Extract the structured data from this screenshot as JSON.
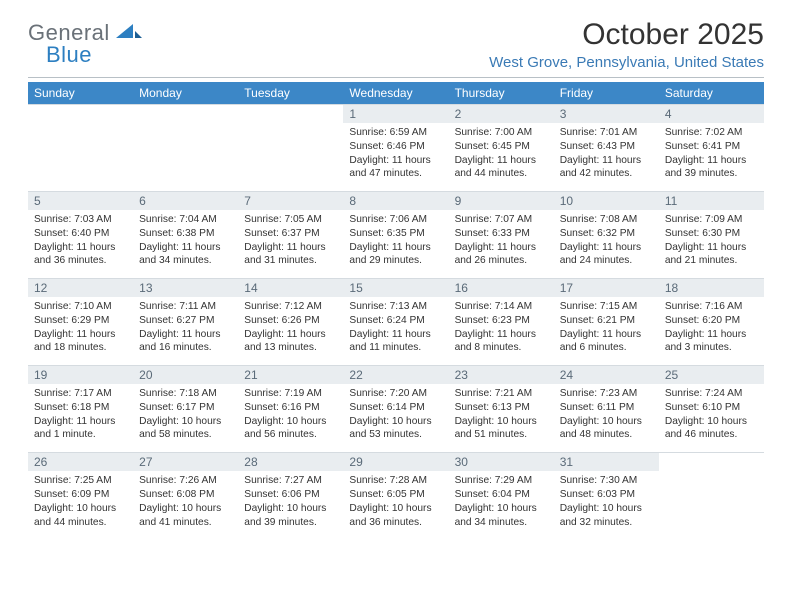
{
  "brand": {
    "part1": "General",
    "part2": "Blue"
  },
  "title": "October 2025",
  "location": "West Grove, Pennsylvania, United States",
  "colors": {
    "header_bg": "#3c87c7",
    "header_text": "#ffffff",
    "daynum_bg": "#e9edf0",
    "daynum_text": "#5a6a78",
    "location_text": "#3a7ab5",
    "logo_gray": "#6a7178",
    "logo_blue": "#2d7fc1"
  },
  "dow": [
    "Sunday",
    "Monday",
    "Tuesday",
    "Wednesday",
    "Thursday",
    "Friday",
    "Saturday"
  ],
  "weeks": [
    {
      "nums": [
        "",
        "",
        "",
        "1",
        "2",
        "3",
        "4"
      ],
      "cells": [
        null,
        null,
        null,
        {
          "sr": "Sunrise: 6:59 AM",
          "ss": "Sunset: 6:46 PM",
          "dl": "Daylight: 11 hours and 47 minutes."
        },
        {
          "sr": "Sunrise: 7:00 AM",
          "ss": "Sunset: 6:45 PM",
          "dl": "Daylight: 11 hours and 44 minutes."
        },
        {
          "sr": "Sunrise: 7:01 AM",
          "ss": "Sunset: 6:43 PM",
          "dl": "Daylight: 11 hours and 42 minutes."
        },
        {
          "sr": "Sunrise: 7:02 AM",
          "ss": "Sunset: 6:41 PM",
          "dl": "Daylight: 11 hours and 39 minutes."
        }
      ]
    },
    {
      "nums": [
        "5",
        "6",
        "7",
        "8",
        "9",
        "10",
        "11"
      ],
      "cells": [
        {
          "sr": "Sunrise: 7:03 AM",
          "ss": "Sunset: 6:40 PM",
          "dl": "Daylight: 11 hours and 36 minutes."
        },
        {
          "sr": "Sunrise: 7:04 AM",
          "ss": "Sunset: 6:38 PM",
          "dl": "Daylight: 11 hours and 34 minutes."
        },
        {
          "sr": "Sunrise: 7:05 AM",
          "ss": "Sunset: 6:37 PM",
          "dl": "Daylight: 11 hours and 31 minutes."
        },
        {
          "sr": "Sunrise: 7:06 AM",
          "ss": "Sunset: 6:35 PM",
          "dl": "Daylight: 11 hours and 29 minutes."
        },
        {
          "sr": "Sunrise: 7:07 AM",
          "ss": "Sunset: 6:33 PM",
          "dl": "Daylight: 11 hours and 26 minutes."
        },
        {
          "sr": "Sunrise: 7:08 AM",
          "ss": "Sunset: 6:32 PM",
          "dl": "Daylight: 11 hours and 24 minutes."
        },
        {
          "sr": "Sunrise: 7:09 AM",
          "ss": "Sunset: 6:30 PM",
          "dl": "Daylight: 11 hours and 21 minutes."
        }
      ]
    },
    {
      "nums": [
        "12",
        "13",
        "14",
        "15",
        "16",
        "17",
        "18"
      ],
      "cells": [
        {
          "sr": "Sunrise: 7:10 AM",
          "ss": "Sunset: 6:29 PM",
          "dl": "Daylight: 11 hours and 18 minutes."
        },
        {
          "sr": "Sunrise: 7:11 AM",
          "ss": "Sunset: 6:27 PM",
          "dl": "Daylight: 11 hours and 16 minutes."
        },
        {
          "sr": "Sunrise: 7:12 AM",
          "ss": "Sunset: 6:26 PM",
          "dl": "Daylight: 11 hours and 13 minutes."
        },
        {
          "sr": "Sunrise: 7:13 AM",
          "ss": "Sunset: 6:24 PM",
          "dl": "Daylight: 11 hours and 11 minutes."
        },
        {
          "sr": "Sunrise: 7:14 AM",
          "ss": "Sunset: 6:23 PM",
          "dl": "Daylight: 11 hours and 8 minutes."
        },
        {
          "sr": "Sunrise: 7:15 AM",
          "ss": "Sunset: 6:21 PM",
          "dl": "Daylight: 11 hours and 6 minutes."
        },
        {
          "sr": "Sunrise: 7:16 AM",
          "ss": "Sunset: 6:20 PM",
          "dl": "Daylight: 11 hours and 3 minutes."
        }
      ]
    },
    {
      "nums": [
        "19",
        "20",
        "21",
        "22",
        "23",
        "24",
        "25"
      ],
      "cells": [
        {
          "sr": "Sunrise: 7:17 AM",
          "ss": "Sunset: 6:18 PM",
          "dl": "Daylight: 11 hours and 1 minute."
        },
        {
          "sr": "Sunrise: 7:18 AM",
          "ss": "Sunset: 6:17 PM",
          "dl": "Daylight: 10 hours and 58 minutes."
        },
        {
          "sr": "Sunrise: 7:19 AM",
          "ss": "Sunset: 6:16 PM",
          "dl": "Daylight: 10 hours and 56 minutes."
        },
        {
          "sr": "Sunrise: 7:20 AM",
          "ss": "Sunset: 6:14 PM",
          "dl": "Daylight: 10 hours and 53 minutes."
        },
        {
          "sr": "Sunrise: 7:21 AM",
          "ss": "Sunset: 6:13 PM",
          "dl": "Daylight: 10 hours and 51 minutes."
        },
        {
          "sr": "Sunrise: 7:23 AM",
          "ss": "Sunset: 6:11 PM",
          "dl": "Daylight: 10 hours and 48 minutes."
        },
        {
          "sr": "Sunrise: 7:24 AM",
          "ss": "Sunset: 6:10 PM",
          "dl": "Daylight: 10 hours and 46 minutes."
        }
      ]
    },
    {
      "nums": [
        "26",
        "27",
        "28",
        "29",
        "30",
        "31",
        ""
      ],
      "cells": [
        {
          "sr": "Sunrise: 7:25 AM",
          "ss": "Sunset: 6:09 PM",
          "dl": "Daylight: 10 hours and 44 minutes."
        },
        {
          "sr": "Sunrise: 7:26 AM",
          "ss": "Sunset: 6:08 PM",
          "dl": "Daylight: 10 hours and 41 minutes."
        },
        {
          "sr": "Sunrise: 7:27 AM",
          "ss": "Sunset: 6:06 PM",
          "dl": "Daylight: 10 hours and 39 minutes."
        },
        {
          "sr": "Sunrise: 7:28 AM",
          "ss": "Sunset: 6:05 PM",
          "dl": "Daylight: 10 hours and 36 minutes."
        },
        {
          "sr": "Sunrise: 7:29 AM",
          "ss": "Sunset: 6:04 PM",
          "dl": "Daylight: 10 hours and 34 minutes."
        },
        {
          "sr": "Sunrise: 7:30 AM",
          "ss": "Sunset: 6:03 PM",
          "dl": "Daylight: 10 hours and 32 minutes."
        },
        null
      ]
    }
  ]
}
